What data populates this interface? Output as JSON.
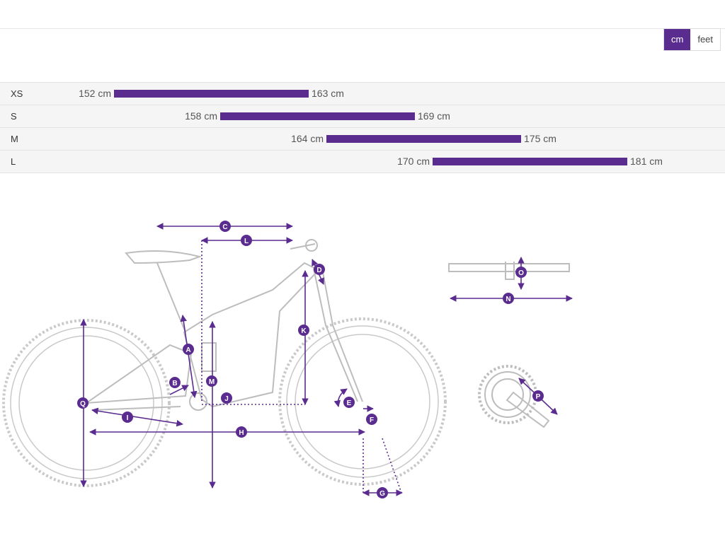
{
  "unit_toggle": {
    "options": [
      "cm",
      "feet"
    ],
    "selected": "cm"
  },
  "sizes": [
    {
      "name": "XS",
      "min": 152,
      "max": 163,
      "min_label": "152 cm",
      "max_label": "163 cm"
    },
    {
      "name": "S",
      "min": 158,
      "max": 169,
      "min_label": "158 cm",
      "max_label": "169 cm"
    },
    {
      "name": "M",
      "min": 164,
      "max": 175,
      "min_label": "164 cm",
      "max_label": "175 cm"
    },
    {
      "name": "L",
      "min": 170,
      "max": 181,
      "min_label": "170 cm",
      "max_label": "181 cm"
    }
  ],
  "colors": {
    "accent": "#5b2c8f",
    "row_bg": "#f5f5f5",
    "frame_line": "#c9c9c9"
  },
  "geometry_labels": [
    "A",
    "B",
    "C",
    "D",
    "E",
    "F",
    "G",
    "H",
    "I",
    "J",
    "K",
    "L",
    "M",
    "N",
    "O",
    "P",
    "Q"
  ]
}
